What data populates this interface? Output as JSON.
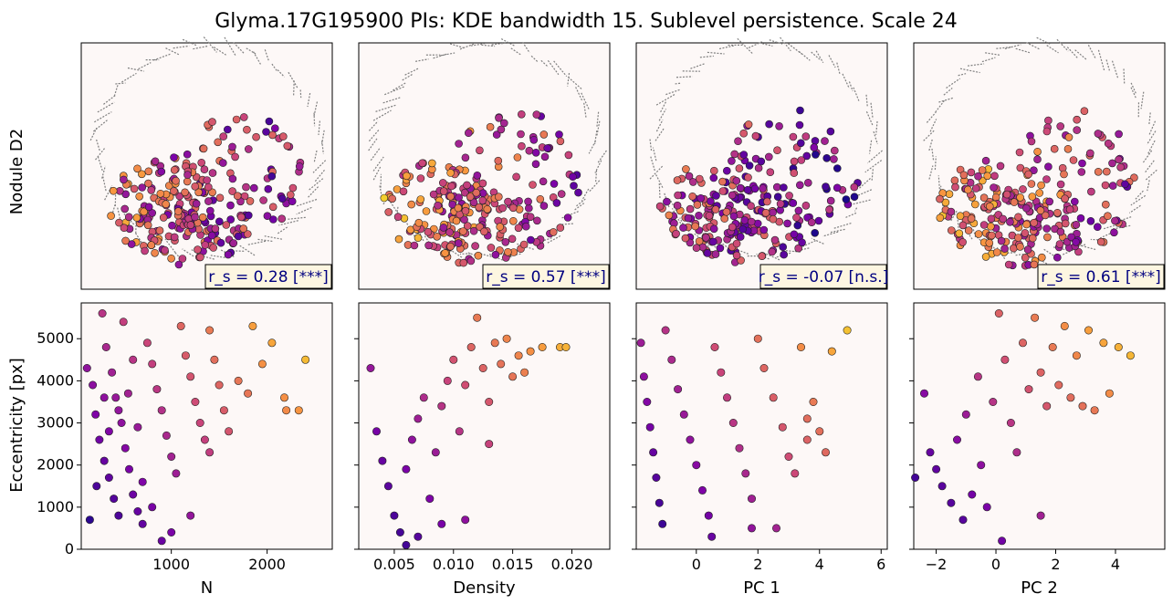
{
  "figure": {
    "title": "Glyma.17G195900 PIs: KDE bandwidth 15. Sublevel persistence. Scale 24",
    "row_label_top": "Nodule D2",
    "ylabel_bottom": "Eccentricity [px]"
  },
  "colors": {
    "panel_bg": "#fdf8f7",
    "outline_gray": "#808080",
    "colormap": "plasma-like (purple to yellow)",
    "annot_box_bg": "#fdf6e1",
    "annot_text": "#000080"
  },
  "chart_data": [
    {
      "type": "scatter",
      "panel": "top-1",
      "annotation": "r_s = 0.28 [***]",
      "rs": 0.28,
      "significance": "***"
    },
    {
      "type": "scatter",
      "panel": "top-2",
      "annotation": "r_s = 0.57 [***]",
      "rs": 0.57,
      "significance": "***"
    },
    {
      "type": "scatter",
      "panel": "top-3",
      "annotation": "r_s = -0.07 [n.s.]",
      "rs": -0.07,
      "significance": "n.s."
    },
    {
      "type": "scatter",
      "panel": "top-4",
      "annotation": "r_s = 0.61 [***]",
      "rs": 0.61,
      "significance": "***"
    },
    {
      "type": "scatter",
      "panel": "bottom-1",
      "xlabel": "N",
      "ylabel": "Eccentricity [px]",
      "xlim": [
        60,
        2680
      ],
      "ylim": [
        0,
        5850
      ],
      "xticks": [
        1000,
        2000
      ],
      "yticks": [
        0,
        1000,
        2000,
        3000,
        4000,
        5000
      ],
      "rs": 0.28,
      "points": [
        [
          120,
          4300
        ],
        [
          180,
          3900
        ],
        [
          210,
          3200
        ],
        [
          250,
          2600
        ],
        [
          300,
          2100
        ],
        [
          350,
          1700
        ],
        [
          400,
          1200
        ],
        [
          450,
          800
        ],
        [
          150,
          700
        ],
        [
          220,
          1500
        ],
        [
          280,
          5600
        ],
        [
          320,
          4800
        ],
        [
          380,
          4200
        ],
        [
          420,
          3600
        ],
        [
          480,
          3000
        ],
        [
          520,
          2400
        ],
        [
          560,
          1900
        ],
        [
          600,
          1300
        ],
        [
          650,
          900
        ],
        [
          700,
          600
        ],
        [
          750,
          4900
        ],
        [
          800,
          4400
        ],
        [
          850,
          3800
        ],
        [
          900,
          3300
        ],
        [
          950,
          2700
        ],
        [
          1000,
          2200
        ],
        [
          1050,
          1800
        ],
        [
          1100,
          5300
        ],
        [
          1150,
          4600
        ],
        [
          1200,
          4100
        ],
        [
          1250,
          3500
        ],
        [
          1300,
          3000
        ],
        [
          1350,
          2600
        ],
        [
          1400,
          5200
        ],
        [
          1450,
          4500
        ],
        [
          1500,
          3900
        ],
        [
          1550,
          3300
        ],
        [
          1600,
          2800
        ],
        [
          1700,
          4000
        ],
        [
          1800,
          3700
        ],
        [
          1850,
          5300
        ],
        [
          1950,
          4400
        ],
        [
          2050,
          4900
        ],
        [
          2180,
          3600
        ],
        [
          2200,
          3300
        ],
        [
          2400,
          4500
        ],
        [
          2330,
          3300
        ],
        [
          1400,
          2300
        ],
        [
          1200,
          800
        ],
        [
          1000,
          400
        ],
        [
          900,
          200
        ],
        [
          800,
          1000
        ],
        [
          700,
          1600
        ],
        [
          650,
          2900
        ],
        [
          550,
          3700
        ],
        [
          500,
          5400
        ],
        [
          600,
          4500
        ],
        [
          450,
          3300
        ],
        [
          350,
          2800
        ],
        [
          300,
          3600
        ]
      ]
    },
    {
      "type": "scatter",
      "panel": "bottom-2",
      "xlabel": "Density",
      "xlim": [
        0.002,
        0.0232
      ],
      "ylim": [
        0,
        5850
      ],
      "xticks": [
        0.005,
        0.01,
        0.015,
        0.02
      ],
      "xtick_labels": [
        "0.005",
        "0.010",
        "0.015",
        "0.020"
      ],
      "rs": 0.57,
      "points": [
        [
          0.003,
          4300
        ],
        [
          0.0035,
          2800
        ],
        [
          0.004,
          2100
        ],
        [
          0.0045,
          1500
        ],
        [
          0.005,
          800
        ],
        [
          0.0055,
          400
        ],
        [
          0.006,
          1900
        ],
        [
          0.0065,
          2600
        ],
        [
          0.007,
          3100
        ],
        [
          0.0075,
          3600
        ],
        [
          0.008,
          1200
        ],
        [
          0.0085,
          2300
        ],
        [
          0.009,
          3400
        ],
        [
          0.0095,
          4000
        ],
        [
          0.01,
          4500
        ],
        [
          0.0105,
          2800
        ],
        [
          0.011,
          3900
        ],
        [
          0.0115,
          4800
        ],
        [
          0.012,
          5500
        ],
        [
          0.0125,
          4300
        ],
        [
          0.013,
          3500
        ],
        [
          0.0135,
          4900
        ],
        [
          0.014,
          4400
        ],
        [
          0.0145,
          5000
        ],
        [
          0.015,
          4100
        ],
        [
          0.0155,
          4600
        ],
        [
          0.016,
          4200
        ],
        [
          0.0165,
          4700
        ],
        [
          0.0175,
          4800
        ],
        [
          0.019,
          4800
        ],
        [
          0.0195,
          4800
        ],
        [
          0.013,
          2500
        ],
        [
          0.011,
          700
        ],
        [
          0.009,
          600
        ],
        [
          0.007,
          300
        ],
        [
          0.006,
          100
        ]
      ]
    },
    {
      "type": "scatter",
      "panel": "bottom-3",
      "xlabel": "PC 1",
      "xlim": [
        -1.95,
        6.2
      ],
      "ylim": [
        0,
        5850
      ],
      "xticks": [
        0,
        2,
        4,
        6
      ],
      "rs": -0.07,
      "points": [
        [
          -1.8,
          4900
        ],
        [
          -1.7,
          4100
        ],
        [
          -1.6,
          3500
        ],
        [
          -1.5,
          2900
        ],
        [
          -1.4,
          2300
        ],
        [
          -1.3,
          1700
        ],
        [
          -1.2,
          1100
        ],
        [
          -1.1,
          600
        ],
        [
          -1.0,
          5200
        ],
        [
          -0.8,
          4500
        ],
        [
          -0.6,
          3800
        ],
        [
          -0.4,
          3200
        ],
        [
          -0.2,
          2600
        ],
        [
          0.0,
          2000
        ],
        [
          0.2,
          1400
        ],
        [
          0.4,
          800
        ],
        [
          0.6,
          4800
        ],
        [
          0.8,
          4200
        ],
        [
          1.0,
          3600
        ],
        [
          1.2,
          3000
        ],
        [
          1.4,
          2400
        ],
        [
          1.6,
          1800
        ],
        [
          1.8,
          1200
        ],
        [
          2.0,
          5000
        ],
        [
          2.2,
          4300
        ],
        [
          2.5,
          3600
        ],
        [
          2.8,
          2900
        ],
        [
          3.0,
          2200
        ],
        [
          3.2,
          1800
        ],
        [
          3.4,
          4800
        ],
        [
          3.6,
          3100
        ],
        [
          3.8,
          3500
        ],
        [
          4.0,
          2800
        ],
        [
          4.2,
          2300
        ],
        [
          4.4,
          4700
        ],
        [
          4.9,
          5200
        ],
        [
          3.6,
          2600
        ],
        [
          2.6,
          500
        ],
        [
          1.8,
          500
        ],
        [
          0.5,
          300
        ]
      ]
    },
    {
      "type": "scatter",
      "panel": "bottom-4",
      "xlabel": "PC 2",
      "xlim": [
        -2.75,
        5.65
      ],
      "ylim": [
        0,
        5850
      ],
      "xticks": [
        -2,
        0,
        2,
        4
      ],
      "xtick_labels": [
        "−2",
        "0",
        "2",
        "4"
      ],
      "rs": 0.61,
      "points": [
        [
          -2.7,
          1700
        ],
        [
          -2.4,
          3700
        ],
        [
          -2.2,
          2300
        ],
        [
          -2.0,
          1900
        ],
        [
          -1.8,
          1500
        ],
        [
          -1.5,
          1100
        ],
        [
          -1.3,
          2600
        ],
        [
          -1.1,
          700
        ],
        [
          -1.0,
          3200
        ],
        [
          -0.8,
          1300
        ],
        [
          -0.6,
          4100
        ],
        [
          -0.5,
          2000
        ],
        [
          -0.3,
          1000
        ],
        [
          -0.1,
          3500
        ],
        [
          0.1,
          5600
        ],
        [
          0.3,
          4500
        ],
        [
          0.5,
          3000
        ],
        [
          0.7,
          2300
        ],
        [
          0.9,
          4900
        ],
        [
          1.1,
          3800
        ],
        [
          1.3,
          5500
        ],
        [
          1.5,
          4200
        ],
        [
          1.7,
          3400
        ],
        [
          1.9,
          4800
        ],
        [
          2.1,
          3900
        ],
        [
          2.3,
          5300
        ],
        [
          2.5,
          3600
        ],
        [
          2.7,
          4600
        ],
        [
          2.9,
          3400
        ],
        [
          3.1,
          5200
        ],
        [
          3.3,
          3300
        ],
        [
          3.6,
          4900
        ],
        [
          3.8,
          3700
        ],
        [
          4.1,
          4800
        ],
        [
          4.5,
          4600
        ],
        [
          1.5,
          800
        ],
        [
          0.2,
          200
        ]
      ]
    }
  ]
}
